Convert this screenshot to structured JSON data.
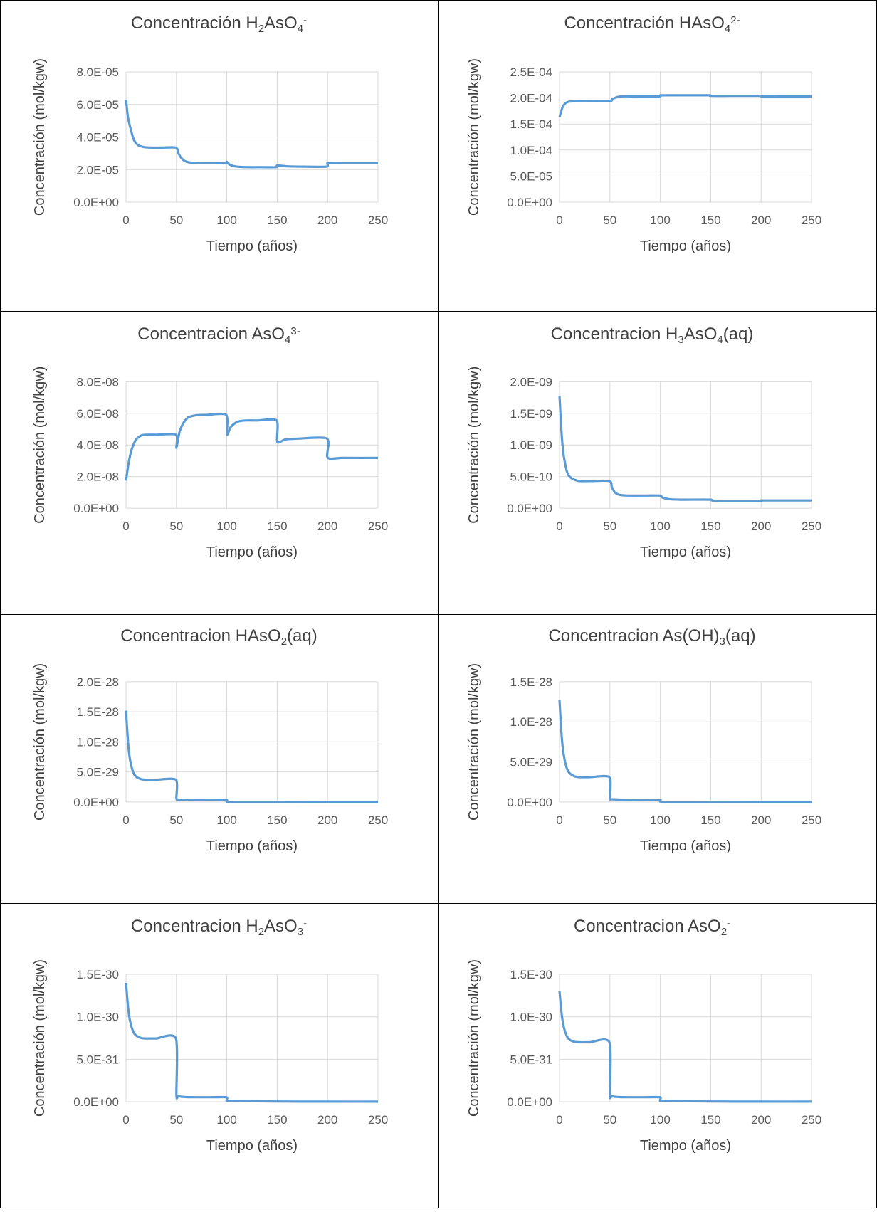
{
  "chart_data": [
    {
      "type": "line",
      "title_parts": [
        [
          "Concentración H",
          ""
        ],
        [
          "2",
          "sub"
        ],
        [
          "AsO",
          ""
        ],
        [
          "4",
          "sub"
        ],
        [
          "-",
          "sup"
        ]
      ],
      "xlabel": "Tiempo (años)",
      "ylabel": "Concentración (mol/kgw)",
      "xlim": [
        0,
        250
      ],
      "xticks": [
        "0",
        "50",
        "100",
        "150",
        "200",
        "250"
      ],
      "ylim": [
        0,
        8e-05
      ],
      "yticks": [
        "0.0E+00",
        "2.0E-05",
        "4.0E-05",
        "6.0E-05",
        "8.0E-05"
      ],
      "grid": true,
      "series": [
        {
          "x": [
            0,
            2,
            5,
            8,
            12,
            18,
            25,
            35,
            49.5,
            52,
            55,
            60,
            70,
            85,
            99,
            100,
            103,
            110,
            120,
            135,
            149,
            150,
            160,
            175,
            199,
            200,
            210,
            230,
            250
          ],
          "y": [
            6.3e-05,
            5.2e-05,
            4.4e-05,
            3.8e-05,
            3.5e-05,
            3.38e-05,
            3.35e-05,
            3.35e-05,
            3.35e-05,
            3e-05,
            2.7e-05,
            2.48e-05,
            2.4e-05,
            2.4e-05,
            2.4e-05,
            2.48e-05,
            2.3e-05,
            2.18e-05,
            2.15e-05,
            2.15e-05,
            2.15e-05,
            2.25e-05,
            2.2e-05,
            2.18e-05,
            2.18e-05,
            2.4e-05,
            2.4e-05,
            2.4e-05,
            2.4e-05
          ]
        }
      ]
    },
    {
      "type": "line",
      "title_parts": [
        [
          "Concentración HAsO",
          ""
        ],
        [
          "4",
          "sub"
        ],
        [
          "2-",
          "sup"
        ]
      ],
      "xlabel": "Tiempo (años)",
      "ylabel": "Concentración (mol/kgw)",
      "xlim": [
        0,
        250
      ],
      "xticks": [
        "0",
        "50",
        "100",
        "150",
        "200",
        "250"
      ],
      "ylim": [
        0,
        0.00025
      ],
      "yticks": [
        "0.0E+00",
        "5.0E-05",
        "1.0E-04",
        "1.5E-04",
        "2.0E-04",
        "2.5E-04"
      ],
      "grid": true,
      "series": [
        {
          "x": [
            0,
            3,
            6,
            10,
            20,
            49.5,
            52,
            56,
            62,
            75,
            99,
            100,
            110,
            130,
            149,
            150,
            170,
            199,
            200,
            220,
            250
          ],
          "y": [
            0.000163,
            0.000182,
            0.00019,
            0.000193,
            0.000194,
            0.000194,
            0.000197,
            0.000201,
            0.000203,
            0.000203,
            0.000203,
            0.000205,
            0.000205,
            0.000205,
            0.000205,
            0.000204,
            0.000204,
            0.000204,
            0.000203,
            0.000203,
            0.000203
          ]
        }
      ]
    },
    {
      "type": "line",
      "title_parts": [
        [
          "Concentracion AsO",
          ""
        ],
        [
          "4",
          "sub"
        ],
        [
          "3-",
          "sup"
        ]
      ],
      "xlabel": "Tiempo (años)",
      "ylabel": "Concentración (mol/kgw)",
      "xlim": [
        0,
        250
      ],
      "xticks": [
        "0",
        "50",
        "100",
        "150",
        "200",
        "250"
      ],
      "ylim": [
        0,
        8e-08
      ],
      "yticks": [
        "0.0E+00",
        "2.0E-08",
        "4.0E-08",
        "6.0E-08",
        "8.0E-08"
      ],
      "grid": true,
      "series": [
        {
          "x": [
            0,
            3,
            6,
            10,
            15,
            20,
            30,
            49.5,
            50,
            53,
            57,
            62,
            70,
            80,
            99.5,
            100,
            104,
            110,
            118,
            130,
            149.5,
            150,
            158,
            170,
            199.5,
            200,
            215,
            250
          ],
          "y": [
            1.75e-08,
            3e-08,
            3.8e-08,
            4.35e-08,
            4.6e-08,
            4.65e-08,
            4.65e-08,
            4.65e-08,
            3.82e-08,
            4.8e-08,
            5.4e-08,
            5.75e-08,
            5.88e-08,
            5.9e-08,
            5.9e-08,
            4.65e-08,
            5.15e-08,
            5.45e-08,
            5.55e-08,
            5.55e-08,
            5.55e-08,
            4.2e-08,
            4.35e-08,
            4.4e-08,
            4.4e-08,
            3.2e-08,
            3.18e-08,
            3.18e-08
          ]
        }
      ]
    },
    {
      "type": "line",
      "title_parts": [
        [
          "Concentracion H",
          ""
        ],
        [
          "3",
          "sub"
        ],
        [
          "AsO",
          ""
        ],
        [
          "4",
          "sub"
        ],
        [
          "(aq)",
          ""
        ]
      ],
      "xlabel": "Tiempo (años)",
      "ylabel": "Concentración (mol/kgw)",
      "xlim": [
        0,
        250
      ],
      "xticks": [
        "0",
        "50",
        "100",
        "150",
        "200",
        "250"
      ],
      "ylim": [
        0,
        2e-09
      ],
      "yticks": [
        "0.0E+00",
        "5.0E-10",
        "1.0E-09",
        "1.5E-09",
        "2.0E-09"
      ],
      "grid": true,
      "series": [
        {
          "x": [
            0,
            2,
            4,
            7,
            10,
            15,
            20,
            30,
            49.5,
            52,
            55,
            60,
            70,
            85,
            99.5,
            102,
            108,
            120,
            149.5,
            152,
            170,
            199.5,
            201,
            250
          ],
          "y": [
            1.78e-09,
            1.2e-09,
            8.5e-10,
            6e-10,
            5e-10,
            4.5e-10,
            4.3e-10,
            4.3e-10,
            4.3e-10,
            3.3e-10,
            2.5e-10,
            2.1e-10,
            2e-10,
            2e-10,
            2e-10,
            1.7e-10,
            1.45e-10,
            1.35e-10,
            1.35e-10,
            1.2e-10,
            1.18e-10,
            1.18e-10,
            1.22e-10,
            1.22e-10
          ]
        }
      ]
    },
    {
      "type": "line",
      "title_parts": [
        [
          "Concentracion HAsO",
          ""
        ],
        [
          "2",
          "sub"
        ],
        [
          "(aq)",
          ""
        ]
      ],
      "xlabel": "Tiempo (años)",
      "ylabel": "Concentración (mol/kgw)",
      "xlim": [
        0,
        250
      ],
      "xticks": [
        "0",
        "50",
        "100",
        "150",
        "200",
        "250"
      ],
      "ylim": [
        0,
        2e-28
      ],
      "yticks": [
        "0.0E+00",
        "5.0E-29",
        "1.0E-28",
        "1.5E-28",
        "2.0E-28"
      ],
      "grid": true,
      "series": [
        {
          "x": [
            0,
            2,
            4,
            7,
            10,
            15,
            20,
            30,
            49.5,
            50,
            52,
            60,
            80,
            99.5,
            100,
            110,
            150,
            200,
            250
          ],
          "y": [
            1.52e-28,
            1e-28,
            7e-29,
            5e-29,
            4.2e-29,
            3.8e-29,
            3.7e-29,
            3.7e-29,
            3.7e-29,
            6e-30,
            4e-30,
            3e-30,
            3e-30,
            3e-30,
            5e-31,
            3e-31,
            2e-31,
            1e-31,
            1e-31
          ]
        }
      ]
    },
    {
      "type": "line",
      "title_parts": [
        [
          "Concentracion As(OH)",
          ""
        ],
        [
          "3",
          "sub"
        ],
        [
          "(aq)",
          ""
        ]
      ],
      "xlabel": "Tiempo (años)",
      "ylabel": "Concentración (mol/kgw)",
      "xlim": [
        0,
        250
      ],
      "xticks": [
        "0",
        "50",
        "100",
        "150",
        "200",
        "250"
      ],
      "ylim": [
        0,
        1.5e-28
      ],
      "yticks": [
        "0.0E+00",
        "5.0E-29",
        "1.0E-28",
        "1.5E-28"
      ],
      "grid": true,
      "series": [
        {
          "x": [
            0,
            2,
            4,
            7,
            10,
            15,
            20,
            30,
            49.5,
            50,
            52,
            60,
            80,
            99.5,
            100,
            110,
            150,
            200,
            250
          ],
          "y": [
            1.27e-28,
            8.5e-29,
            6e-29,
            4.3e-29,
            3.6e-29,
            3.2e-29,
            3.1e-29,
            3.1e-29,
            3.1e-29,
            5e-30,
            3.5e-30,
            3e-30,
            2.8e-30,
            2.8e-30,
            5e-31,
            3e-31,
            2e-31,
            1e-31,
            1e-31
          ]
        }
      ]
    },
    {
      "type": "line",
      "title_parts": [
        [
          "Concentracion H",
          ""
        ],
        [
          "2",
          "sub"
        ],
        [
          "AsO",
          ""
        ],
        [
          "3",
          "sub"
        ],
        [
          "-",
          "sup"
        ]
      ],
      "xlabel": "Tiempo (años)",
      "ylabel": "Concentración (mol/kgw)",
      "xlim": [
        0,
        250
      ],
      "xticks": [
        "0",
        "50",
        "100",
        "150",
        "200",
        "250"
      ],
      "ylim": [
        0,
        1.5e-30
      ],
      "yticks": [
        "0.0E+00",
        "5.0E-31",
        "1.0E-30",
        "1.5E-30"
      ],
      "grid": true,
      "series": [
        {
          "x": [
            0,
            2,
            4,
            7,
            10,
            15,
            20,
            30,
            49.5,
            50,
            52,
            60,
            80,
            99.5,
            100,
            110,
            150,
            200,
            250
          ],
          "y": [
            1.4e-30,
            1.12e-30,
            9.5e-31,
            8.3e-31,
            7.8e-31,
            7.5e-31,
            7.45e-31,
            7.45e-31,
            7.45e-31,
            8e-32,
            6.5e-32,
            5.5e-32,
            5.3e-32,
            5.3e-32,
            1e-32,
            8e-33,
            3e-33,
            1e-33,
            1e-33
          ]
        }
      ]
    },
    {
      "type": "line",
      "title_parts": [
        [
          "Concentracion AsO",
          ""
        ],
        [
          "2",
          "sub"
        ],
        [
          "-",
          "sup"
        ]
      ],
      "xlabel": "Tiempo (años)",
      "ylabel": "Concentración (mol/kgw)",
      "xlim": [
        0,
        250
      ],
      "xticks": [
        "0",
        "50",
        "100",
        "150",
        "200",
        "250"
      ],
      "ylim": [
        0,
        1.5e-30
      ],
      "yticks": [
        "0.0E+00",
        "5.0E-31",
        "1.0E-30",
        "1.5E-30"
      ],
      "grid": true,
      "series": [
        {
          "x": [
            0,
            2,
            4,
            7,
            10,
            15,
            20,
            30,
            49.5,
            50,
            52,
            60,
            80,
            99.5,
            100,
            110,
            150,
            200,
            250
          ],
          "y": [
            1.3e-30,
            1.05e-30,
            8.9e-31,
            7.8e-31,
            7.3e-31,
            7.05e-31,
            7e-31,
            7e-31,
            7e-31,
            8e-32,
            6.5e-32,
            5.5e-32,
            5.3e-32,
            5.3e-32,
            1e-32,
            8e-33,
            3e-33,
            1e-33,
            1e-33
          ]
        }
      ]
    }
  ],
  "style": {
    "line_color": "#5b9bd5",
    "grid_color": "#d9d9d9",
    "text_color": "#595959"
  }
}
